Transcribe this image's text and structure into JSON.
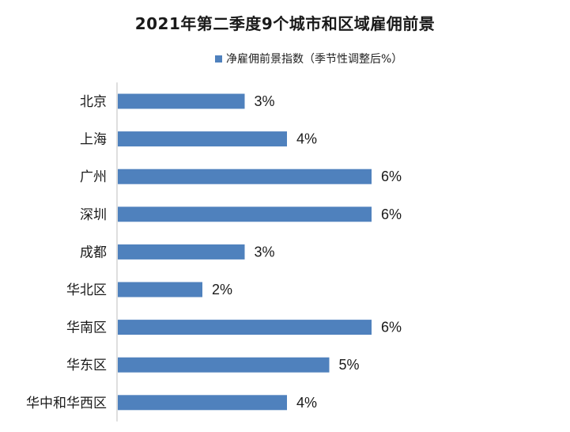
{
  "chart_data": {
    "type": "bar",
    "orientation": "horizontal",
    "title": "2021年第二季度9个城市和区域雇佣前景",
    "categories": [
      "北京",
      "上海",
      "广州",
      "深圳",
      "成都",
      "华北区",
      "华南区",
      "华东区",
      "华中和华西区"
    ],
    "series": [
      {
        "name": "净雇佣前景指数（季节性调整后%）",
        "values": [
          3,
          4,
          6,
          6,
          3,
          2,
          6,
          5,
          4
        ],
        "color": "#4f81bd"
      }
    ],
    "data_labels": [
      "3%",
      "4%",
      "6%",
      "6%",
      "3%",
      "2%",
      "6%",
      "5%",
      "4%"
    ],
    "xlim": [
      0,
      6
    ],
    "xlabel": "",
    "ylabel": "",
    "legend_position": "top",
    "grid": false
  }
}
